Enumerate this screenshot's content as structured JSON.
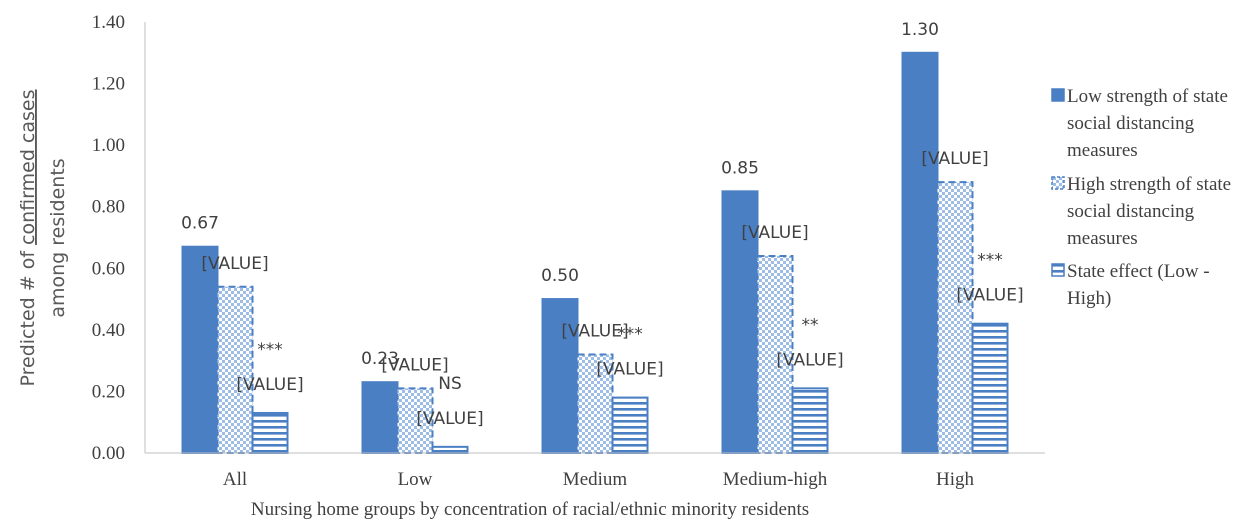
{
  "chart_data": {
    "type": "bar",
    "title": "",
    "xlabel": "Nursing home groups by concentration of racial/ethnic minority residents",
    "ylabel_line1_prefix": "Predicted # of ",
    "ylabel_line1_underlined": "confirmed cases",
    "ylabel_line2": "among residents",
    "ylim": [
      0,
      1.4
    ],
    "yticks": [
      "0.00",
      "0.20",
      "0.40",
      "0.60",
      "0.80",
      "1.00",
      "1.20",
      "1.40"
    ],
    "categories": [
      "All",
      "Low",
      "Medium",
      "Medium-high",
      "High"
    ],
    "series": [
      {
        "name": "Low strength of state social distancing measures",
        "legend_lines": [
          "Low strength of state",
          "social distancing",
          "measures"
        ],
        "values": [
          0.67,
          0.23,
          0.5,
          0.85,
          1.3
        ],
        "labels": [
          "0.67",
          "0.23",
          "0.50",
          "0.85",
          "1.30"
        ],
        "color": "#4a7fc4",
        "pattern": "solid"
      },
      {
        "name": "High strength of state social distancing measures",
        "legend_lines": [
          "High strength of state",
          "social distancing",
          "measures"
        ],
        "values": [
          0.54,
          0.21,
          0.32,
          0.64,
          0.88
        ],
        "labels": [
          "[VALUE]",
          "[VALUE]",
          "[VALUE]",
          "[VALUE]",
          "[VALUE]"
        ],
        "color": "#4a7fc4",
        "pattern": "checker"
      },
      {
        "name": "State effect (Low - High)",
        "legend_lines": [
          "State effect (Low -",
          "High)"
        ],
        "values": [
          0.13,
          0.02,
          0.18,
          0.21,
          0.42
        ],
        "labels": [
          "[VALUE]",
          "[VALUE]",
          "[VALUE]",
          "[VALUE]",
          "[VALUE]"
        ],
        "color": "#4a7fc4",
        "pattern": "hstripe"
      }
    ],
    "significance": [
      "***",
      "NS",
      "***",
      "**",
      "***"
    ],
    "legend_position": "right",
    "grid": false
  }
}
